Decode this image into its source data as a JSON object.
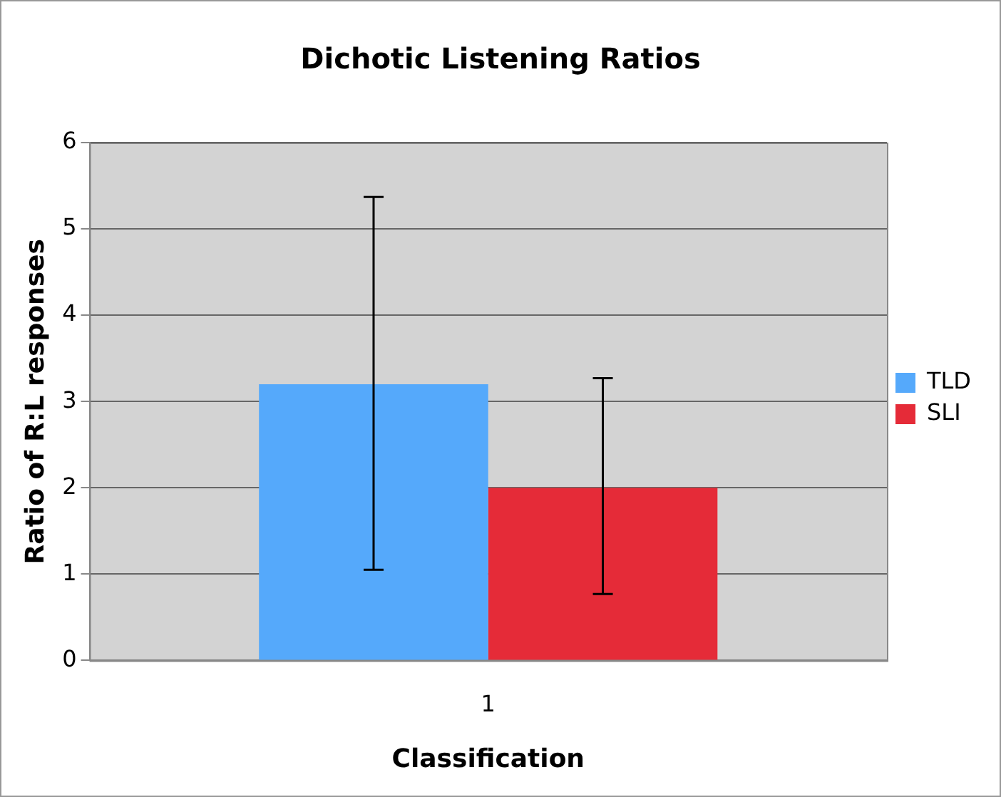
{
  "chart_data": {
    "type": "bar",
    "title": "Dichotic Listening Ratios",
    "xlabel": "Classification",
    "ylabel": "Ratio of R:L responses",
    "categories": [
      "1"
    ],
    "series": [
      {
        "name": "TLD",
        "color": "#55a9fb",
        "values": [
          3.2
        ],
        "errors": [
          [
            1.05,
            5.37
          ]
        ]
      },
      {
        "name": "SLI",
        "color": "#e52b38",
        "values": [
          2.0
        ],
        "errors": [
          [
            0.77,
            3.27
          ]
        ]
      }
    ],
    "ylim": [
      0,
      6
    ],
    "yticks": [
      0,
      1,
      2,
      3,
      4,
      5,
      6
    ],
    "grid": "y",
    "legend": "right"
  }
}
